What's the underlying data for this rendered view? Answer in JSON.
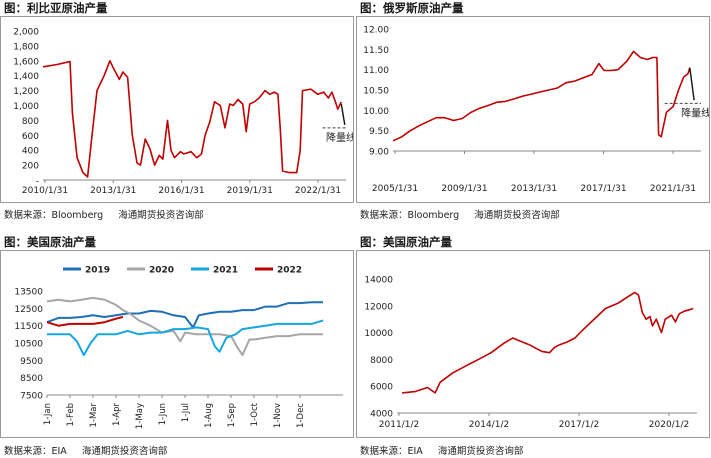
{
  "panels": [
    {
      "title": "图：利比亚原油产量",
      "source": "数据来源：Bloomberg",
      "org": "海通期货投资咨询部"
    },
    {
      "title": "图：俄罗斯原油产量",
      "source": "数据来源：Bloomberg",
      "org": "海通期货投资咨询部"
    },
    {
      "title": "图：美国原油产量",
      "source": "数据来源：EIA",
      "org": "海通期货投资咨询部"
    },
    {
      "title": "图：美国原油产量",
      "source": "数据来源：EIA",
      "org": "海通期货投资咨询部"
    }
  ],
  "chart_data": [
    {
      "type": "line",
      "title": "图：利比亚原油产量",
      "ylim": [
        0,
        2000
      ],
      "yticks": [
        "-",
        "200",
        "400",
        "600",
        "800",
        "1,000",
        "1,200",
        "1,400",
        "1,600",
        "1,800",
        "2,000"
      ],
      "xticks": [
        "2010/1/31",
        "2013/1/31",
        "2016/1/31",
        "2019/1/31",
        "2022/1/31"
      ],
      "xlim": [
        2010.0,
        2022.9
      ],
      "color": "#c00000",
      "reference": {
        "label": "降量线",
        "value": 700
      },
      "points": [
        [
          2010.0,
          1520
        ],
        [
          2010.6,
          1550
        ],
        [
          2011.0,
          1580
        ],
        [
          2011.15,
          1590
        ],
        [
          2011.25,
          900
        ],
        [
          2011.45,
          300
        ],
        [
          2011.7,
          100
        ],
        [
          2011.9,
          40
        ],
        [
          2012.05,
          500
        ],
        [
          2012.3,
          1200
        ],
        [
          2012.6,
          1400
        ],
        [
          2012.85,
          1600
        ],
        [
          2013.0,
          1500
        ],
        [
          2013.25,
          1350
        ],
        [
          2013.4,
          1450
        ],
        [
          2013.6,
          1380
        ],
        [
          2013.8,
          600
        ],
        [
          2014.0,
          230
        ],
        [
          2014.15,
          200
        ],
        [
          2014.35,
          550
        ],
        [
          2014.55,
          420
        ],
        [
          2014.75,
          200
        ],
        [
          2014.95,
          330
        ],
        [
          2015.1,
          280
        ],
        [
          2015.3,
          800
        ],
        [
          2015.45,
          400
        ],
        [
          2015.6,
          300
        ],
        [
          2015.85,
          380
        ],
        [
          2016.0,
          350
        ],
        [
          2016.3,
          380
        ],
        [
          2016.55,
          300
        ],
        [
          2016.75,
          350
        ],
        [
          2016.9,
          600
        ],
        [
          2017.1,
          780
        ],
        [
          2017.3,
          1050
        ],
        [
          2017.55,
          1000
        ],
        [
          2017.75,
          700
        ],
        [
          2017.95,
          1020
        ],
        [
          2018.1,
          1000
        ],
        [
          2018.3,
          1080
        ],
        [
          2018.5,
          1020
        ],
        [
          2018.65,
          650
        ],
        [
          2018.8,
          1020
        ],
        [
          2019.0,
          1050
        ],
        [
          2019.2,
          1100
        ],
        [
          2019.45,
          1200
        ],
        [
          2019.65,
          1150
        ],
        [
          2019.85,
          1180
        ],
        [
          2020.0,
          1150
        ],
        [
          2020.1,
          700
        ],
        [
          2020.2,
          120
        ],
        [
          2020.5,
          100
        ],
        [
          2020.8,
          100
        ],
        [
          2020.95,
          400
        ],
        [
          2021.05,
          1200
        ],
        [
          2021.4,
          1220
        ],
        [
          2021.7,
          1150
        ],
        [
          2021.95,
          1180
        ],
        [
          2022.15,
          1100
        ],
        [
          2022.3,
          1180
        ],
        [
          2022.45,
          1050
        ],
        [
          2022.55,
          950
        ],
        [
          2022.7,
          1050
        ]
      ],
      "extension": [
        [
          2022.7,
          1020
        ],
        [
          2022.85,
          740
        ]
      ]
    },
    {
      "type": "line",
      "title": "图：俄罗斯原油产量",
      "ylim": [
        9.0,
        12.0
      ],
      "yticks": [
        "9.00",
        "9.50",
        "10.00",
        "10.50",
        "11.00",
        "11.50",
        "12.00"
      ],
      "xticks": [
        "2005/1/31",
        "2009/1/31",
        "2013/1/31",
        "2017/1/31",
        "2021/1/31"
      ],
      "xlim": [
        2005.0,
        2022.8
      ],
      "color": "#c00000",
      "reference": {
        "label": "降量线",
        "value": 10.17
      },
      "points": [
        [
          2005.0,
          9.25
        ],
        [
          2005.5,
          9.35
        ],
        [
          2006.0,
          9.5
        ],
        [
          2006.5,
          9.62
        ],
        [
          2007.0,
          9.72
        ],
        [
          2007.5,
          9.82
        ],
        [
          2008.0,
          9.82
        ],
        [
          2008.5,
          9.75
        ],
        [
          2009.0,
          9.8
        ],
        [
          2009.5,
          9.95
        ],
        [
          2010.0,
          10.05
        ],
        [
          2010.5,
          10.12
        ],
        [
          2011.0,
          10.2
        ],
        [
          2011.5,
          10.22
        ],
        [
          2012.0,
          10.28
        ],
        [
          2012.5,
          10.35
        ],
        [
          2013.0,
          10.4
        ],
        [
          2013.5,
          10.45
        ],
        [
          2014.0,
          10.5
        ],
        [
          2014.5,
          10.55
        ],
        [
          2015.0,
          10.68
        ],
        [
          2015.5,
          10.72
        ],
        [
          2016.0,
          10.8
        ],
        [
          2016.5,
          10.88
        ],
        [
          2016.9,
          11.15
        ],
        [
          2017.2,
          10.98
        ],
        [
          2017.6,
          10.98
        ],
        [
          2018.0,
          11.0
        ],
        [
          2018.5,
          11.2
        ],
        [
          2018.9,
          11.45
        ],
        [
          2019.3,
          11.3
        ],
        [
          2019.7,
          11.25
        ],
        [
          2020.0,
          11.3
        ],
        [
          2020.25,
          11.3
        ],
        [
          2020.35,
          9.4
        ],
        [
          2020.5,
          9.35
        ],
        [
          2020.8,
          9.95
        ],
        [
          2021.2,
          10.1
        ],
        [
          2021.5,
          10.5
        ],
        [
          2021.8,
          10.82
        ],
        [
          2022.05,
          10.9
        ],
        [
          2022.15,
          11.05
        ]
      ],
      "extension": [
        [
          2022.15,
          11.05
        ],
        [
          2022.4,
          10.25
        ]
      ]
    },
    {
      "type": "line",
      "title": "图：美国原油产量",
      "ylim": [
        7500,
        13500
      ],
      "yticks": [
        "7500",
        "8500",
        "9500",
        "10500",
        "11500",
        "12500",
        "13500"
      ],
      "xticks": [
        "1-Jan",
        "1-Feb",
        "1-Mar",
        "1-Apr",
        "1-May",
        "1-Jun",
        "1-Jul",
        "1-Aug",
        "1-Sep",
        "1-Oct",
        "1-Nov",
        "1-Dec"
      ],
      "xlim": [
        0,
        12
      ],
      "series": [
        {
          "name": "2019",
          "color": "#1f6fb5",
          "points": [
            [
              0,
              11700
            ],
            [
              0.5,
              11950
            ],
            [
              1.0,
              11950
            ],
            [
              1.5,
              12000
            ],
            [
              2.0,
              12100
            ],
            [
              2.5,
              12000
            ],
            [
              3.0,
              12100
            ],
            [
              3.5,
              12200
            ],
            [
              4.0,
              12200
            ],
            [
              4.5,
              12350
            ],
            [
              5.0,
              12300
            ],
            [
              5.5,
              12100
            ],
            [
              6.0,
              12000
            ],
            [
              6.35,
              11400
            ],
            [
              6.6,
              12100
            ],
            [
              7.0,
              12200
            ],
            [
              7.5,
              12300
            ],
            [
              8.0,
              12300
            ],
            [
              8.5,
              12400
            ],
            [
              9.0,
              12400
            ],
            [
              9.5,
              12600
            ],
            [
              10.0,
              12600
            ],
            [
              10.5,
              12800
            ],
            [
              11.0,
              12800
            ],
            [
              11.5,
              12850
            ],
            [
              12.0,
              12850
            ]
          ]
        },
        {
          "name": "2020",
          "color": "#a6a6a6",
          "points": [
            [
              0,
              12900
            ],
            [
              0.5,
              13000
            ],
            [
              1.0,
              12900
            ],
            [
              1.5,
              13000
            ],
            [
              2.0,
              13100
            ],
            [
              2.5,
              13000
            ],
            [
              3.0,
              12700
            ],
            [
              3.3,
              12400
            ],
            [
              3.6,
              12200
            ],
            [
              4.0,
              11800
            ],
            [
              4.5,
              11500
            ],
            [
              5.0,
              11100
            ],
            [
              5.5,
              11200
            ],
            [
              5.8,
              10600
            ],
            [
              6.0,
              11100
            ],
            [
              6.5,
              11000
            ],
            [
              7.0,
              11000
            ],
            [
              7.5,
              11000
            ],
            [
              8.0,
              10900
            ],
            [
              8.3,
              10200
            ],
            [
              8.5,
              9800
            ],
            [
              8.8,
              10700
            ],
            [
              9.0,
              10700
            ],
            [
              9.5,
              10800
            ],
            [
              10.0,
              10900
            ],
            [
              10.5,
              10900
            ],
            [
              11.0,
              11000
            ],
            [
              11.5,
              11000
            ],
            [
              12.0,
              11000
            ]
          ]
        },
        {
          "name": "2021",
          "color": "#16a6e0",
          "points": [
            [
              0,
              11000
            ],
            [
              0.5,
              11000
            ],
            [
              1.0,
              11000
            ],
            [
              1.3,
              10600
            ],
            [
              1.6,
              9800
            ],
            [
              1.9,
              10500
            ],
            [
              2.2,
              11000
            ],
            [
              2.5,
              11000
            ],
            [
              3.0,
              11000
            ],
            [
              3.5,
              11200
            ],
            [
              4.0,
              11000
            ],
            [
              4.5,
              11100
            ],
            [
              5.0,
              11100
            ],
            [
              5.5,
              11300
            ],
            [
              6.0,
              11300
            ],
            [
              6.5,
              11400
            ],
            [
              7.0,
              11300
            ],
            [
              7.3,
              10300
            ],
            [
              7.5,
              10000
            ],
            [
              7.8,
              10800
            ],
            [
              8.2,
              11000
            ],
            [
              8.5,
              11300
            ],
            [
              9.0,
              11400
            ],
            [
              9.5,
              11500
            ],
            [
              10.0,
              11600
            ],
            [
              10.5,
              11600
            ],
            [
              11.0,
              11600
            ],
            [
              11.5,
              11600
            ],
            [
              12.0,
              11800
            ]
          ]
        },
        {
          "name": "2022",
          "color": "#c00000",
          "points": [
            [
              0,
              11700
            ],
            [
              0.5,
              11500
            ],
            [
              1.0,
              11600
            ],
            [
              1.5,
              11600
            ],
            [
              2.0,
              11600
            ],
            [
              2.5,
              11700
            ],
            [
              3.0,
              11900
            ],
            [
              3.3,
              12000
            ]
          ]
        }
      ]
    },
    {
      "type": "line",
      "title": "图：美国原油产量",
      "ylim": [
        4000,
        14000
      ],
      "yticks": [
        "4000",
        "6000",
        "8000",
        "10000",
        "12000",
        "14000"
      ],
      "xticks": [
        "2011/1/2",
        "2014/1/2",
        "2017/1/2",
        "2020/1/2"
      ],
      "xlim": [
        2010.8,
        2022.6
      ],
      "color": "#c00000",
      "points": [
        [
          2011.0,
          5500
        ],
        [
          2011.5,
          5600
        ],
        [
          2012.0,
          5900
        ],
        [
          2012.3,
          5500
        ],
        [
          2012.5,
          6300
        ],
        [
          2013.0,
          7000
        ],
        [
          2013.5,
          7500
        ],
        [
          2014.0,
          8000
        ],
        [
          2014.5,
          8500
        ],
        [
          2015.0,
          9200
        ],
        [
          2015.35,
          9600
        ],
        [
          2015.6,
          9400
        ],
        [
          2016.0,
          9100
        ],
        [
          2016.5,
          8600
        ],
        [
          2016.8,
          8500
        ],
        [
          2017.0,
          8900
        ],
        [
          2017.2,
          9100
        ],
        [
          2017.5,
          9300
        ],
        [
          2017.8,
          9600
        ],
        [
          2018.0,
          10000
        ],
        [
          2018.5,
          10900
        ],
        [
          2019.0,
          11800
        ],
        [
          2019.5,
          12200
        ],
        [
          2019.9,
          12700
        ],
        [
          2020.15,
          13000
        ],
        [
          2020.3,
          12800
        ],
        [
          2020.45,
          11500
        ],
        [
          2020.6,
          11000
        ],
        [
          2020.75,
          11200
        ],
        [
          2020.85,
          10500
        ],
        [
          2021.0,
          11000
        ],
        [
          2021.2,
          10000
        ],
        [
          2021.35,
          11000
        ],
        [
          2021.6,
          11300
        ],
        [
          2021.75,
          10800
        ],
        [
          2021.9,
          11400
        ],
        [
          2022.1,
          11600
        ],
        [
          2022.3,
          11700
        ],
        [
          2022.45,
          11800
        ]
      ]
    }
  ]
}
